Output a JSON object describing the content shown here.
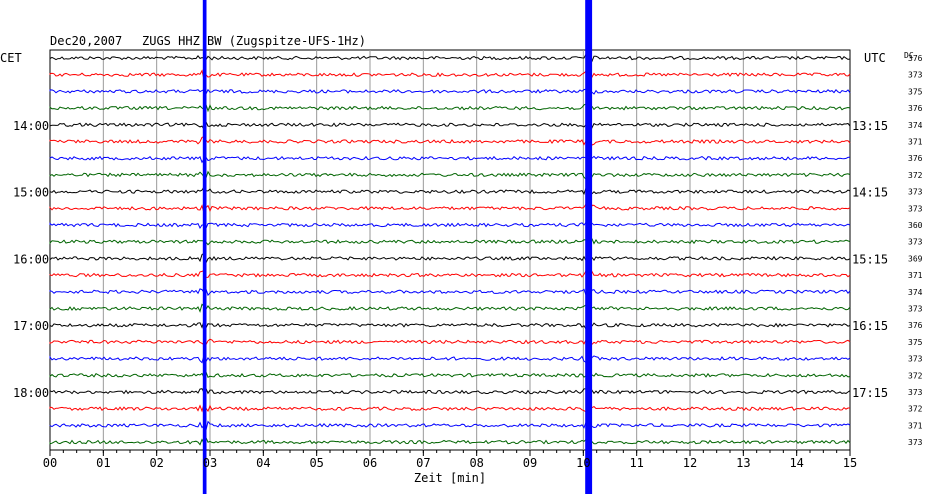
{
  "header": {
    "date": "Dec20,2007",
    "station": "ZUGS HHZ BW (Zugspitze-UFS-1Hz)",
    "left_zone": "CET",
    "right_zone": "UTC",
    "dc_label": "DC"
  },
  "chart_data": {
    "type": "line",
    "title": "",
    "xlabel": "Zeit [min]",
    "xlim": [
      0,
      15
    ],
    "x_ticks": [
      "00",
      "01",
      "02",
      "03",
      "04",
      "05",
      "06",
      "07",
      "08",
      "09",
      "10",
      "11",
      "12",
      "13",
      "14",
      "15"
    ],
    "trace_count": 24,
    "trace_colors": [
      "#000000",
      "#ff0000",
      "#0000ff",
      "#006400"
    ],
    "left_hour_labels": [
      {
        "trace": 4,
        "label": "14:00"
      },
      {
        "trace": 8,
        "label": "15:00"
      },
      {
        "trace": 12,
        "label": "16:00"
      },
      {
        "trace": 16,
        "label": "17:00"
      },
      {
        "trace": 20,
        "label": "18:00"
      }
    ],
    "right_hour_labels": [
      {
        "trace": 4,
        "label": "13:15"
      },
      {
        "trace": 8,
        "label": "14:15"
      },
      {
        "trace": 12,
        "label": "15:15"
      },
      {
        "trace": 16,
        "label": "16:15"
      },
      {
        "trace": 20,
        "label": "17:15"
      }
    ],
    "dc_values": [
      "376",
      "373",
      "375",
      "376",
      "374",
      "371",
      "376",
      "372",
      "373",
      "373",
      "360",
      "373",
      "369",
      "371",
      "374",
      "373",
      "376",
      "375",
      "373",
      "372",
      "373",
      "372",
      "371",
      "373"
    ],
    "events": [
      {
        "x_min": 2.9,
        "width_min": 0.07,
        "color": "#0000ff"
      },
      {
        "x_min": 10.1,
        "width_min": 0.13,
        "color": "#0000ff"
      }
    ]
  }
}
